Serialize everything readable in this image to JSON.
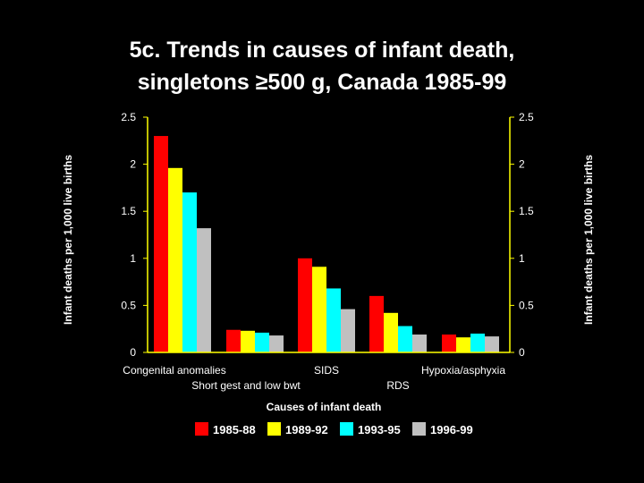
{
  "slide": {
    "title_line1": "5c. Trends in causes of infant death,",
    "title_line2": "singletons ≥500 g, Canada 1985-99"
  },
  "chart_data": {
    "type": "bar",
    "title": "5c. Trends in causes of infant death, singletons ≥500 g, Canada 1985-99",
    "xlabel": "Causes of infant death",
    "ylabel": "Infant deaths per 1,000 live births",
    "ylabel_right": "Infant deaths per 1,000 live births",
    "ylim": [
      0,
      2.5
    ],
    "yticks": [
      "0",
      "0.5",
      "1",
      "1.5",
      "2",
      "2.5"
    ],
    "grid": false,
    "legend_position": "bottom",
    "categories": [
      "Congenital anomalies",
      "Short gest and low bwt",
      "SIDS",
      "RDS",
      "Hypoxia/asphyxia"
    ],
    "series": [
      {
        "name": "1985-88",
        "color": "#ff0000",
        "values": [
          2.3,
          0.24,
          1.0,
          0.6,
          0.19
        ]
      },
      {
        "name": "1989-92",
        "color": "#ffff00",
        "values": [
          1.96,
          0.23,
          0.91,
          0.42,
          0.16
        ]
      },
      {
        "name": "1993-95",
        "color": "#00ffff",
        "values": [
          1.7,
          0.21,
          0.68,
          0.28,
          0.2
        ]
      },
      {
        "name": "1996-99",
        "color": "#c0c0c0",
        "values": [
          1.32,
          0.18,
          0.46,
          0.19,
          0.17
        ]
      }
    ],
    "colors": {
      "background": "#000000",
      "axis": "#ffff00",
      "text": "#ffffff"
    }
  }
}
